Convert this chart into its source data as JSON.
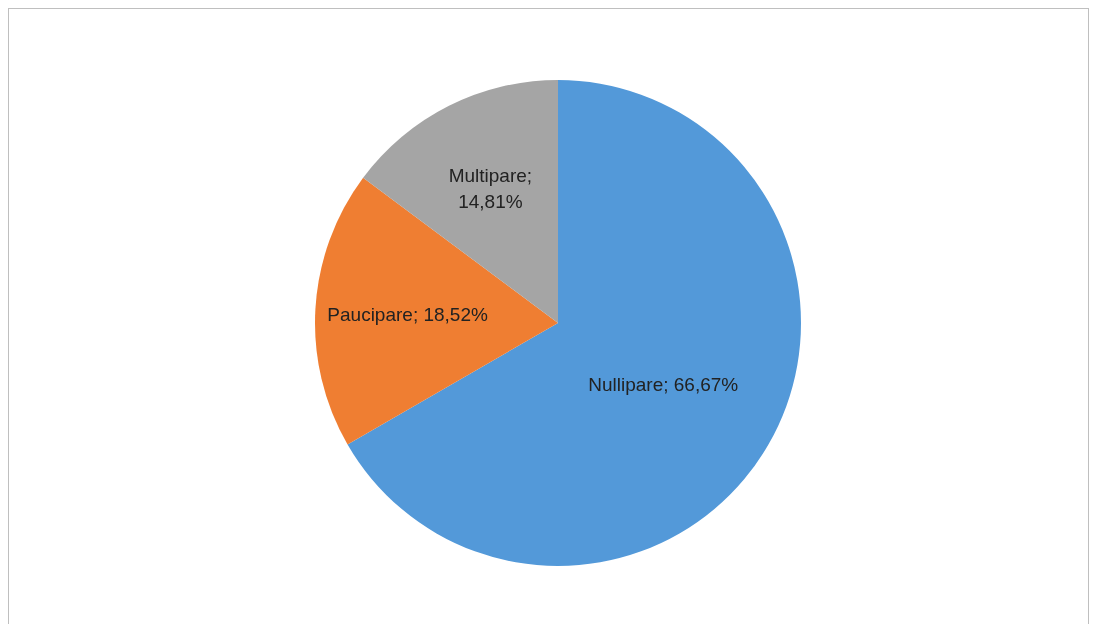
{
  "chart_data": {
    "type": "pie",
    "categories": [
      "Nullipare",
      "Paucipare",
      "Multipare"
    ],
    "values": [
      66.67,
      18.52,
      14.81
    ],
    "colors": [
      "#5399d9",
      "#ef7e32",
      "#a5a5a5"
    ],
    "value_labels": [
      "; 66,67%",
      "; 18,52%",
      "; 14,81%"
    ]
  }
}
